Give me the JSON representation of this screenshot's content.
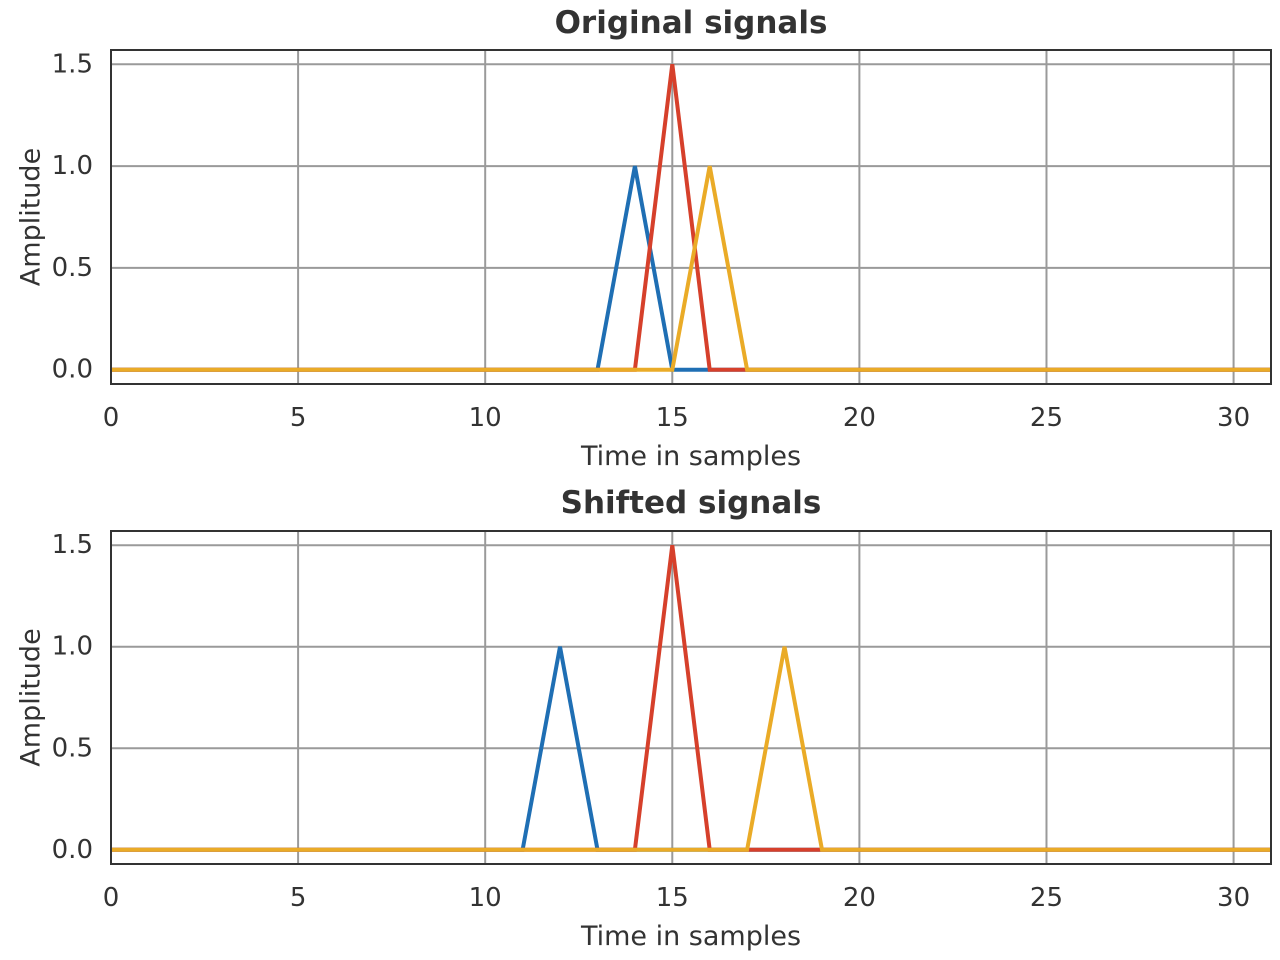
{
  "colors": {
    "text": "#333333",
    "grid": "#9a9a9a",
    "frame": "#333333",
    "background": "#ffffff"
  },
  "chart_data": [
    {
      "type": "line",
      "title": "Original signals",
      "xlabel": "Time in samples",
      "ylabel": "Amplitude",
      "xlim": [
        0,
        31
      ],
      "ylim": [
        -0.07,
        1.57
      ],
      "xticks": [
        0,
        5,
        10,
        15,
        20,
        25,
        30
      ],
      "yticks": [
        0.0,
        0.5,
        1.0,
        1.5
      ],
      "xtick_labels": [
        "0",
        "5",
        "10",
        "15",
        "20",
        "25",
        "30"
      ],
      "ytick_labels": [
        "0.0",
        "0.5",
        "1.0",
        "1.5"
      ],
      "grid": true,
      "series": [
        {
          "color": "#1f6fb4",
          "x": [
            0,
            13,
            14,
            15,
            31
          ],
          "y": [
            0,
            0,
            1.0,
            0,
            0
          ]
        },
        {
          "color": "#d6402b",
          "x": [
            0,
            14,
            15,
            16,
            31
          ],
          "y": [
            0,
            0,
            1.5,
            0,
            0
          ]
        },
        {
          "color": "#eaab27",
          "x": [
            0,
            15,
            16,
            17,
            31
          ],
          "y": [
            0,
            0,
            1.0,
            0,
            0
          ]
        }
      ]
    },
    {
      "type": "line",
      "title": "Shifted signals",
      "xlabel": "Time in samples",
      "ylabel": "Amplitude",
      "xlim": [
        0,
        31
      ],
      "ylim": [
        -0.07,
        1.57
      ],
      "xticks": [
        0,
        5,
        10,
        15,
        20,
        25,
        30
      ],
      "yticks": [
        0.0,
        0.5,
        1.0,
        1.5
      ],
      "xtick_labels": [
        "0",
        "5",
        "10",
        "15",
        "20",
        "25",
        "30"
      ],
      "ytick_labels": [
        "0.0",
        "0.5",
        "1.0",
        "1.5"
      ],
      "grid": true,
      "series": [
        {
          "color": "#1f6fb4",
          "x": [
            0,
            11,
            12,
            13,
            31
          ],
          "y": [
            0,
            0,
            1.0,
            0,
            0
          ]
        },
        {
          "color": "#d6402b",
          "x": [
            0,
            14,
            15,
            16,
            31
          ],
          "y": [
            0,
            0,
            1.5,
            0,
            0
          ]
        },
        {
          "color": "#eaab27",
          "x": [
            0,
            17,
            18,
            19,
            31
          ],
          "y": [
            0,
            0,
            1.0,
            0,
            0
          ]
        }
      ]
    }
  ]
}
